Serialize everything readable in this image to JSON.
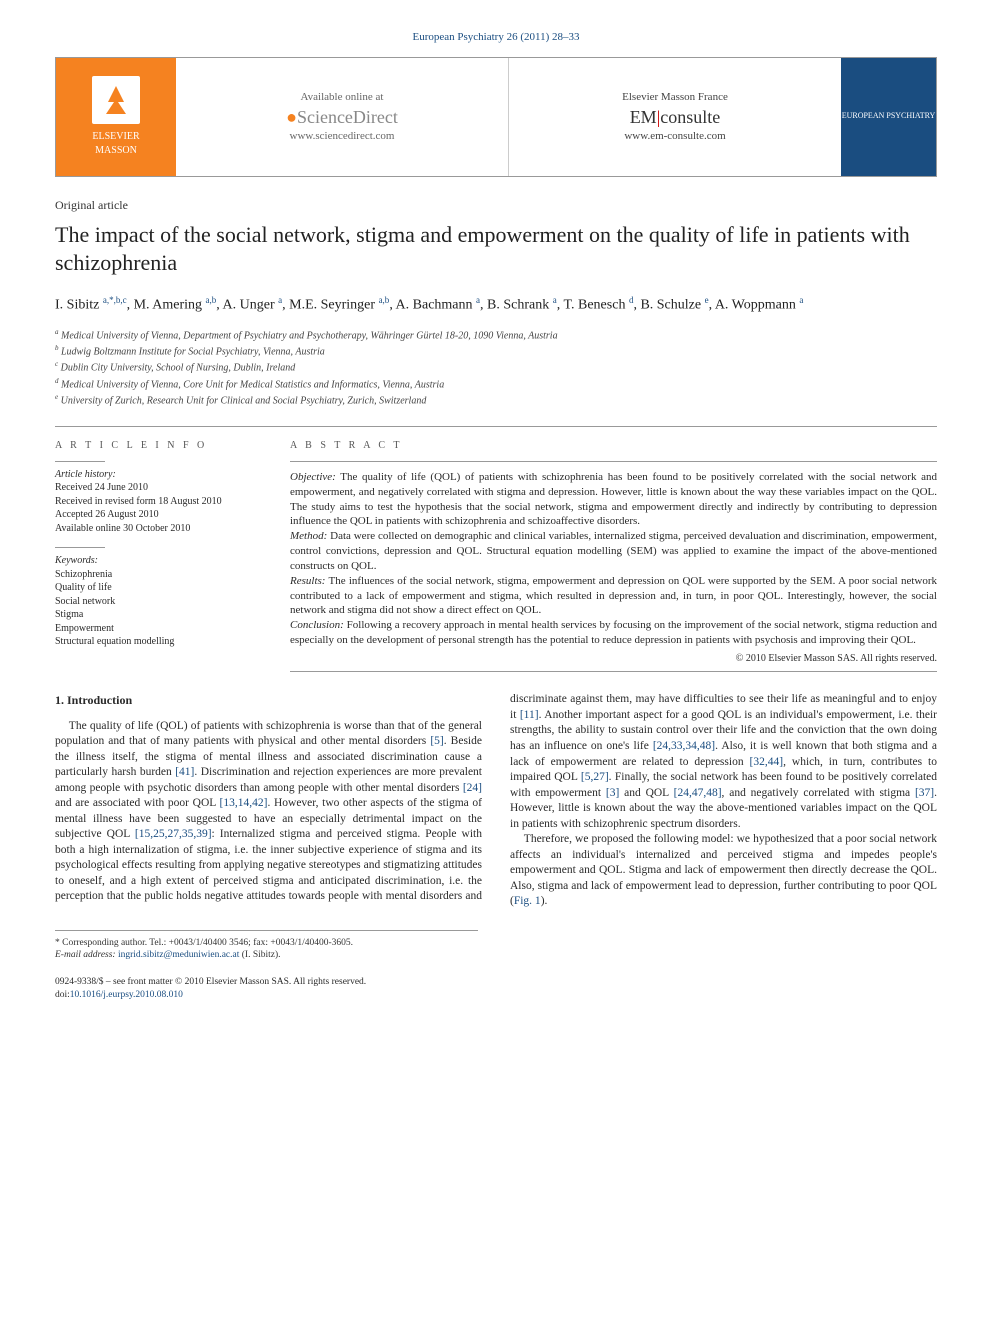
{
  "journal_header": "European Psychiatry 26 (2011) 28–33",
  "banner": {
    "publisher_top": "ELSEVIER",
    "publisher_bottom": "MASSON",
    "sd_available": "Available online at",
    "sd_brand": "ScienceDirect",
    "sd_url": "www.sciencedirect.com",
    "em_top": "Elsevier Masson France",
    "em_brand_left": "EM",
    "em_brand_right": "consulte",
    "em_url": "www.em-consulte.com",
    "cover": "EUROPEAN PSYCHIATRY"
  },
  "article_type": "Original article",
  "title": "The impact of the social network, stigma and empowerment on the quality of life in patients with schizophrenia",
  "authors_html": "I. Sibitz <sup>a,*,b,c</sup>, M. Amering <sup>a,b</sup>, A. Unger <sup>a</sup>, M.E. Seyringer <sup>a,b</sup>, A. Bachmann <sup>a</sup>, B. Schrank <sup>a</sup>, T. Benesch <sup>d</sup>, B. Schulze <sup>e</sup>, A. Woppmann <sup>a</sup>",
  "affiliations": [
    "a Medical University of Vienna, Department of Psychiatry and Psychotherapy, Währinger Gürtel 18-20, 1090 Vienna, Austria",
    "b Ludwig Boltzmann Institute for Social Psychiatry, Vienna, Austria",
    "c Dublin City University, School of Nursing, Dublin, Ireland",
    "d Medical University of Vienna, Core Unit for Medical Statistics and Informatics, Vienna, Austria",
    "e University of Zurich, Research Unit for Clinical and Social Psychiatry, Zurich, Switzerland"
  ],
  "article_info": {
    "heading": "A R T I C L E   I N F O",
    "history_label": "Article history:",
    "history": [
      "Received 24 June 2010",
      "Received in revised form 18 August 2010",
      "Accepted 26 August 2010",
      "Available online 30 October 2010"
    ],
    "keywords_label": "Keywords:",
    "keywords": [
      "Schizophrenia",
      "Quality of life",
      "Social network",
      "Stigma",
      "Empowerment",
      "Structural equation modelling"
    ]
  },
  "abstract": {
    "heading": "A B S T R A C T",
    "objective_label": "Objective:",
    "objective": " The quality of life (QOL) of patients with schizophrenia has been found to be positively correlated with the social network and empowerment, and negatively correlated with stigma and depression. However, little is known about the way these variables impact on the QOL. The study aims to test the hypothesis that the social network, stigma and empowerment directly and indirectly by contributing to depression influence the QOL in patients with schizophrenia and schizoaffective disorders.",
    "method_label": "Method:",
    "method": " Data were collected on demographic and clinical variables, internalized stigma, perceived devaluation and discrimination, empowerment, control convictions, depression and QOL. Structural equation modelling (SEM) was applied to examine the impact of the above-mentioned constructs on QOL.",
    "results_label": "Results:",
    "results": " The influences of the social network, stigma, empowerment and depression on QOL were supported by the SEM. A poor social network contributed to a lack of empowerment and stigma, which resulted in depression and, in turn, in poor QOL. Interestingly, however, the social network and stigma did not show a direct effect on QOL.",
    "conclusion_label": "Conclusion:",
    "conclusion": " Following a recovery approach in mental health services by focusing on the improvement of the social network, stigma reduction and especially on the development of personal strength has the potential to reduce depression in patients with psychosis and improving their QOL.",
    "copyright": "© 2010 Elsevier Masson SAS. All rights reserved."
  },
  "body": {
    "section_num": "1.",
    "section_title": "Introduction",
    "p1_a": "The quality of life (QOL) of patients with schizophrenia is worse than that of the general population and that of many patients with physical and other mental disorders ",
    "p1_ref1": "[5]",
    "p1_b": ". Beside the illness itself, the stigma of mental illness and associated discrimination cause a particularly harsh burden ",
    "p1_ref2": "[41]",
    "p1_c": ". Discrimination and rejection experiences are more prevalent among people with psychotic disorders than among people with other mental disorders ",
    "p1_ref3": "[24]",
    "p1_d": " and are associated with poor QOL ",
    "p1_ref4": "[13,14,42]",
    "p1_e": ". However, two other aspects of the stigma of mental illness have been suggested to have an especially detrimental impact on the subjective QOL ",
    "p1_ref5": "[15,25,27,35,39]",
    "p1_f": ": Internalized stigma and perceived stigma. People with both a high internalization of stigma, i.e. the inner subjective experience of stigma and its psychological effects resulting from applying negative stereotypes and stigmatizing attitudes to oneself, and a high extent of perceived stigma and",
    "p2_a": "anticipated discrimination, i.e. the perception that the public holds negative attitudes towards people with mental disorders and discriminate against them, may have difficulties to see their life as meaningful and to enjoy it ",
    "p2_ref1": "[11]",
    "p2_b": ". Another important aspect for a good QOL is an individual's empowerment, i.e. their strengths, the ability to sustain control over their life and the conviction that the own doing has an influence on one's life ",
    "p2_ref2": "[24,33,34,48]",
    "p2_c": ". Also, it is well known that both stigma and a lack of empowerment are related to depression ",
    "p2_ref3": "[32,44]",
    "p2_d": ", which, in turn, contributes to impaired QOL ",
    "p2_ref4": "[5,27]",
    "p2_e": ". Finally, the social network has been found to be positively correlated with empowerment ",
    "p2_ref5": "[3]",
    "p2_f": " and QOL ",
    "p2_ref6": "[24,47,48]",
    "p2_g": ", and negatively correlated with stigma ",
    "p2_ref7": "[37]",
    "p2_h": ". However, little is known about the way the above-mentioned variables impact on the QOL in patients with schizophrenic spectrum disorders.",
    "p3_a": "Therefore, we proposed the following model: we hypothesized that a poor social network affects an individual's internalized and perceived stigma and impedes people's empowerment and QOL. Stigma and lack of empowerment then directly decrease the QOL. Also, stigma and lack of empowerment lead to depression, further contributing to poor QOL (",
    "p3_ref1": "Fig. 1",
    "p3_b": ")."
  },
  "footnote": {
    "corr": "* Corresponding author. Tel.: +0043/1/40400 3546; fax: +0043/1/40400-3605.",
    "email_label": "E-mail address:",
    "email": "ingrid.sibitz@meduniwien.ac.at",
    "email_who": " (I. Sibitz)."
  },
  "bottom": {
    "front": "0924-9338/$ – see front matter © 2010 Elsevier Masson SAS. All rights reserved.",
    "doi_label": "doi:",
    "doi": "10.1016/j.eurpsy.2010.08.010"
  }
}
